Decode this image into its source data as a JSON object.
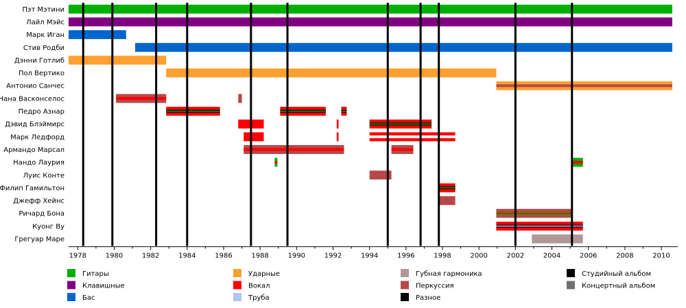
{
  "chart_data": {
    "type": "timeline",
    "title": "",
    "xlabel": "",
    "ylabel": "",
    "xlim": [
      1977.5,
      2010.6
    ],
    "ticks": [
      1978,
      1980,
      1982,
      1984,
      1986,
      1988,
      1990,
      1992,
      1994,
      1996,
      1998,
      2000,
      2002,
      2004,
      2006,
      2008,
      2010
    ],
    "grid": false,
    "legend_position": "bottom",
    "legend": [
      {
        "key": "guitars",
        "label": "Гитары",
        "color": "#00b000"
      },
      {
        "key": "keyboards",
        "label": "Клавишные",
        "color": "#800080"
      },
      {
        "key": "bass",
        "label": "Бас",
        "color": "#0066cc"
      },
      {
        "key": "drums",
        "label": "Ударные",
        "color": "#ffa030"
      },
      {
        "key": "vocals",
        "label": "Вокал",
        "color": "#ff0000"
      },
      {
        "key": "trumpet",
        "label": "Труба",
        "color": "#b0c4f0"
      },
      {
        "key": "harmonica",
        "label": "Губная гармоника",
        "color": "#b09898"
      },
      {
        "key": "percussion",
        "label": "Перкуссия",
        "color": "#b84848"
      },
      {
        "key": "misc",
        "label": "Разное",
        "color": "#000000"
      },
      {
        "key": "studio_album",
        "label": "Студийный альбом",
        "color": "#000000"
      },
      {
        "key": "live_album",
        "label": "Концертный альбом",
        "color": "#707070"
      }
    ],
    "studio_albums": [
      1978.3,
      1979.9,
      1982.3,
      1984.0,
      1987.5,
      1989.5,
      1995.0,
      1996.8,
      1997.8,
      2002.0,
      2005.1
    ],
    "members": [
      {
        "name": "Пэт Мэтини",
        "bars": [
          {
            "start": 1977.5,
            "end": 2010.6,
            "fill": "guitars"
          }
        ]
      },
      {
        "name": "Лайл Мэйс",
        "bars": [
          {
            "start": 1977.5,
            "end": 2010.6,
            "fill": "keyboards"
          }
        ]
      },
      {
        "name": "Марк Иган",
        "bars": [
          {
            "start": 1977.5,
            "end": 1980.65,
            "fill": "bass"
          }
        ]
      },
      {
        "name": "Стив Родби",
        "bars": [
          {
            "start": 1981.15,
            "end": 2010.6,
            "fill": "bass"
          }
        ]
      },
      {
        "name": "Дэнни Готлиб",
        "bars": [
          {
            "start": 1977.5,
            "end": 1982.85,
            "fill": "drums"
          }
        ]
      },
      {
        "name": "Пол Вертико",
        "bars": [
          {
            "start": 1982.85,
            "end": 2000.95,
            "fill": "drums"
          }
        ]
      },
      {
        "name": "Антонио Санчес",
        "bars": [
          {
            "start": 2000.95,
            "end": 2010.6,
            "fill": "drums",
            "stripe": "percussion"
          }
        ]
      },
      {
        "name": "Нана Васконселос",
        "bars": [
          {
            "start": 1980.1,
            "end": 1982.85,
            "fill": "percussion",
            "stripe": "vocals"
          },
          {
            "start": 1986.8,
            "end": 1987.0,
            "fill": "percussion"
          }
        ]
      },
      {
        "name": "Педро Aзнар",
        "bars": [
          {
            "start": 1982.85,
            "end": 1985.8,
            "fill": "vocals",
            "stripe": "misc",
            "stripe2": "guitars"
          },
          {
            "start": 1989.1,
            "end": 1991.6,
            "fill": "vocals",
            "stripe": "misc",
            "stripe2": "guitars"
          },
          {
            "start": 1992.45,
            "end": 1992.75,
            "fill": "vocals",
            "stripe": "misc",
            "stripe2": "guitars"
          }
        ]
      },
      {
        "name": "Дэвид Блэймирс",
        "bars": [
          {
            "start": 1986.8,
            "end": 1988.2,
            "fill": "vocals"
          },
          {
            "start": 1992.2,
            "end": 1992.3,
            "fill": "vocals"
          },
          {
            "start": 1994.0,
            "end": 1997.4,
            "fill": "vocals",
            "stripe": "misc",
            "stripe2": "guitars"
          }
        ]
      },
      {
        "name": "Марк Ледфорд",
        "bars": [
          {
            "start": 1987.1,
            "end": 1988.2,
            "fill": "vocals"
          },
          {
            "start": 1992.2,
            "end": 1992.3,
            "fill": "vocals"
          },
          {
            "start": 1994.0,
            "end": 1998.7,
            "fill": "vocals",
            "stripe": "white"
          }
        ]
      },
      {
        "name": "Армандо Марсал",
        "bars": [
          {
            "start": 1987.1,
            "end": 1992.6,
            "fill": "percussion",
            "stripe": "vocals"
          },
          {
            "start": 1995.2,
            "end": 1996.4,
            "fill": "percussion",
            "stripe": "vocals"
          }
        ]
      },
      {
        "name": "Нандо Лаурия",
        "bars": [
          {
            "start": 1988.8,
            "end": 1988.95,
            "fill": "guitars",
            "stripe": "vocals"
          },
          {
            "start": 2005.1,
            "end": 2005.7,
            "fill": "guitars",
            "stripe": "vocals"
          }
        ]
      },
      {
        "name": "Луис Конте",
        "bars": [
          {
            "start": 1994.0,
            "end": 1995.2,
            "fill": "percussion"
          }
        ]
      },
      {
        "name": "Филип Гамильтон",
        "bars": [
          {
            "start": 1997.8,
            "end": 1998.7,
            "fill": "vocals",
            "stripe": "misc",
            "stripe2": "guitars"
          }
        ]
      },
      {
        "name": "Джефф Хейнс",
        "bars": [
          {
            "start": 1997.8,
            "end": 1998.7,
            "fill": "percussion"
          }
        ]
      },
      {
        "name": "Ричард Бона",
        "bars": [
          {
            "start": 2000.95,
            "end": 2005.1,
            "fill": "percussion",
            "stripe": "guitars",
            "stripe2": "vocals"
          }
        ]
      },
      {
        "name": "Куонг Ву",
        "bars": [
          {
            "start": 2000.95,
            "end": 2005.7,
            "fill": "vocals",
            "stripe": "misc",
            "stripe2": "trumpet"
          }
        ]
      },
      {
        "name": "Грегуар Маре",
        "bars": [
          {
            "start": 2002.9,
            "end": 2005.7,
            "fill": "harmonica"
          }
        ]
      }
    ]
  }
}
